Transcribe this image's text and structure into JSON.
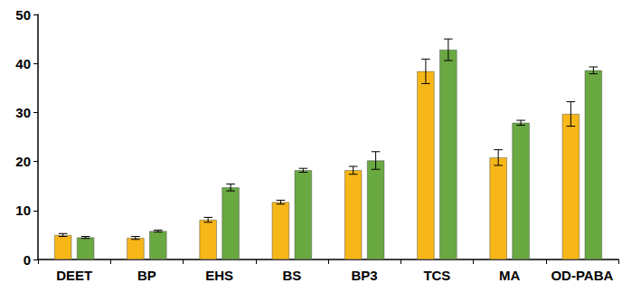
{
  "chart_data": {
    "type": "bar",
    "categories": [
      "DEET",
      "BP",
      "EHS",
      "BS",
      "BP3",
      "TCS",
      "MA",
      "OD-PABA"
    ],
    "series": [
      {
        "color": "#f7b718",
        "values": [
          5.0,
          4.4,
          8.1,
          11.7,
          18.2,
          38.4,
          20.8,
          29.7
        ],
        "errors": [
          0.3,
          0.3,
          0.5,
          0.4,
          0.8,
          2.5,
          1.6,
          2.5
        ]
      },
      {
        "color": "#6aa842",
        "values": [
          4.5,
          5.8,
          14.7,
          18.2,
          20.2,
          42.8,
          27.9,
          38.6
        ],
        "errors": [
          0.2,
          0.2,
          0.7,
          0.4,
          1.8,
          2.2,
          0.5,
          0.7
        ]
      }
    ],
    "ylim": [
      0,
      50
    ],
    "yticks": [
      0,
      10,
      20,
      30,
      40,
      50
    ],
    "grid": false
  }
}
